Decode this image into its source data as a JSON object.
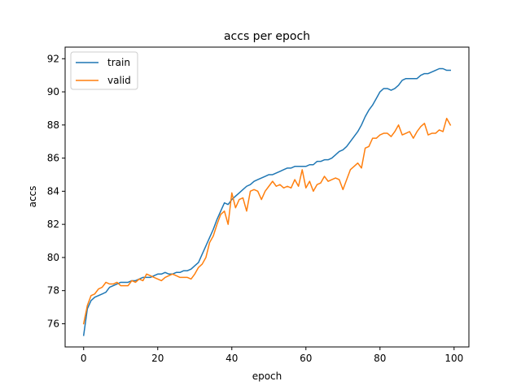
{
  "chart_data": {
    "type": "line",
    "title": "accs per epoch",
    "xlabel": "epoch",
    "ylabel": "accs",
    "xlim": [
      -5,
      104
    ],
    "ylim": [
      74.6,
      92.7
    ],
    "xticks": [
      0,
      20,
      40,
      60,
      80,
      100
    ],
    "yticks": [
      76,
      78,
      80,
      82,
      84,
      86,
      88,
      90,
      92
    ],
    "grid": false,
    "legend": "top-left",
    "series": [
      {
        "name": "train",
        "color": "#1f77b4",
        "x": [
          0,
          1,
          2,
          3,
          4,
          5,
          6,
          7,
          8,
          9,
          10,
          11,
          12,
          13,
          14,
          15,
          16,
          17,
          18,
          19,
          20,
          21,
          22,
          23,
          24,
          25,
          26,
          27,
          28,
          29,
          30,
          31,
          32,
          33,
          34,
          35,
          36,
          37,
          38,
          39,
          40,
          41,
          42,
          43,
          44,
          45,
          46,
          47,
          48,
          49,
          50,
          51,
          52,
          53,
          54,
          55,
          56,
          57,
          58,
          59,
          60,
          61,
          62,
          63,
          64,
          65,
          66,
          67,
          68,
          69,
          70,
          71,
          72,
          73,
          74,
          75,
          76,
          77,
          78,
          79,
          80,
          81,
          82,
          83,
          84,
          85,
          86,
          87,
          88,
          89,
          90,
          91,
          92,
          93,
          94,
          95,
          96,
          97,
          98,
          99
        ],
        "values": [
          75.3,
          76.9,
          77.4,
          77.6,
          77.7,
          77.8,
          77.9,
          78.2,
          78.3,
          78.4,
          78.5,
          78.5,
          78.5,
          78.6,
          78.6,
          78.7,
          78.8,
          78.8,
          78.8,
          78.9,
          79.0,
          79.0,
          79.1,
          79.0,
          79.0,
          79.1,
          79.1,
          79.2,
          79.2,
          79.3,
          79.5,
          79.7,
          80.2,
          80.7,
          81.2,
          81.7,
          82.3,
          82.8,
          83.3,
          83.2,
          83.5,
          83.7,
          83.9,
          84.1,
          84.3,
          84.4,
          84.6,
          84.7,
          84.8,
          84.9,
          85.0,
          85.0,
          85.1,
          85.2,
          85.3,
          85.4,
          85.4,
          85.5,
          85.5,
          85.5,
          85.5,
          85.6,
          85.6,
          85.8,
          85.8,
          85.9,
          85.9,
          86.0,
          86.2,
          86.4,
          86.5,
          86.7,
          87.0,
          87.3,
          87.6,
          88.0,
          88.5,
          88.9,
          89.2,
          89.6,
          90.0,
          90.2,
          90.2,
          90.1,
          90.2,
          90.4,
          90.7,
          90.8,
          90.8,
          90.8,
          90.8,
          91.0,
          91.1,
          91.1,
          91.2,
          91.3,
          91.4,
          91.4,
          91.3,
          91.3
        ]
      },
      {
        "name": "valid",
        "color": "#ff7f0e",
        "x": [
          0,
          1,
          2,
          3,
          4,
          5,
          6,
          7,
          8,
          9,
          10,
          11,
          12,
          13,
          14,
          15,
          16,
          17,
          18,
          19,
          20,
          21,
          22,
          23,
          24,
          25,
          26,
          27,
          28,
          29,
          30,
          31,
          32,
          33,
          34,
          35,
          36,
          37,
          38,
          39,
          40,
          41,
          42,
          43,
          44,
          45,
          46,
          47,
          48,
          49,
          50,
          51,
          52,
          53,
          54,
          55,
          56,
          57,
          58,
          59,
          60,
          61,
          62,
          63,
          64,
          65,
          66,
          67,
          68,
          69,
          70,
          71,
          72,
          73,
          74,
          75,
          76,
          77,
          78,
          79,
          80,
          81,
          82,
          83,
          84,
          85,
          86,
          87,
          88,
          89,
          90,
          91,
          92,
          93,
          94,
          95,
          96,
          97,
          98,
          99
        ],
        "values": [
          76.0,
          77.1,
          77.7,
          77.8,
          78.1,
          78.2,
          78.5,
          78.4,
          78.4,
          78.5,
          78.3,
          78.3,
          78.3,
          78.6,
          78.5,
          78.7,
          78.6,
          79.0,
          78.9,
          78.8,
          78.7,
          78.6,
          78.8,
          78.9,
          79.0,
          78.9,
          78.8,
          78.8,
          78.8,
          78.7,
          79.0,
          79.4,
          79.6,
          80.0,
          80.9,
          81.3,
          82.0,
          82.6,
          82.8,
          82.0,
          83.9,
          83.0,
          83.5,
          83.6,
          82.8,
          84.0,
          84.1,
          84.0,
          83.5,
          84.0,
          84.3,
          84.6,
          84.3,
          84.4,
          84.2,
          84.3,
          84.2,
          84.7,
          84.3,
          85.3,
          84.2,
          84.6,
          84.0,
          84.4,
          84.5,
          84.9,
          84.6,
          84.7,
          84.8,
          84.7,
          84.1,
          84.7,
          85.3,
          85.5,
          85.7,
          85.4,
          86.6,
          86.7,
          87.2,
          87.2,
          87.4,
          87.5,
          87.5,
          87.3,
          87.6,
          88.0,
          87.4,
          87.5,
          87.6,
          87.2,
          87.6,
          87.9,
          88.1,
          87.4,
          87.5,
          87.5,
          87.7,
          87.6,
          88.4,
          88.0
        ]
      }
    ]
  }
}
